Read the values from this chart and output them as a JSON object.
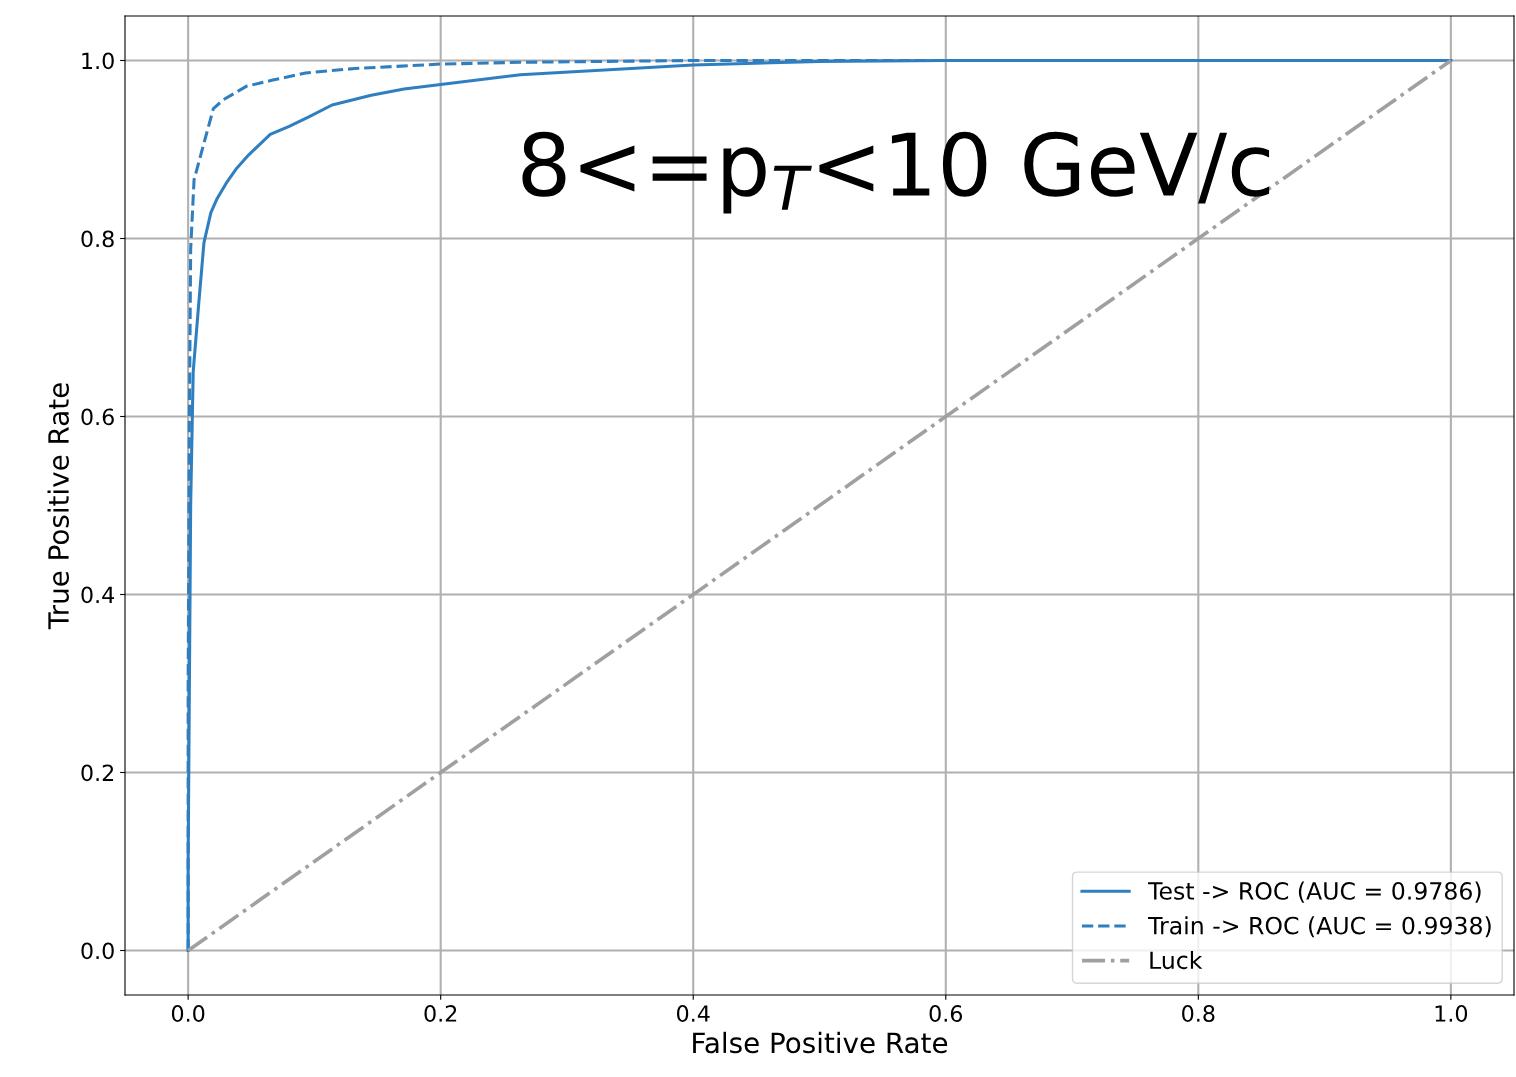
{
  "chart_data": {
    "type": "line",
    "xlabel": "False Positive Rate",
    "ylabel": "True Positive Rate",
    "annotations": [
      "8<=p$_{T}$<10 GeV/c"
    ],
    "xlim": [
      -0.05,
      1.05
    ],
    "ylim": [
      -0.05,
      1.05
    ],
    "xticks": [
      {
        "value": 0,
        "label": "0.0"
      },
      {
        "value": 0.2,
        "label": "0.2"
      },
      {
        "value": 0.4,
        "label": "0.4"
      },
      {
        "value": 0.6,
        "label": "0.6"
      },
      {
        "value": 0.8,
        "label": "0.8"
      },
      {
        "value": 1,
        "label": "1.0"
      }
    ],
    "yticks": [
      {
        "value": 0,
        "label": "0.0"
      },
      {
        "value": 0.2,
        "label": "0.2"
      },
      {
        "value": 0.4,
        "label": "0.4"
      },
      {
        "value": 0.6,
        "label": "0.6"
      },
      {
        "value": 0.8,
        "label": "0.8"
      },
      {
        "value": 1,
        "label": "1.0"
      }
    ],
    "grid": true,
    "legend": "bottom right",
    "series": [
      {
        "name": "Test -> ROC (AUC = 0.9786)",
        "color": "#2f7fc0",
        "line_style": "solid",
        "x": [
          0,
          0,
          0.001,
          0.002,
          0.004,
          0.008,
          0.0125,
          0.018,
          0.023,
          0.031,
          0.0385,
          0.048,
          0.065,
          0.08,
          0.096,
          0.114,
          0.145,
          0.171,
          0.2,
          0.263,
          0.4,
          0.5,
          0.6,
          1
        ],
        "values": [
          0,
          0.1,
          0.3,
          0.5,
          0.65,
          0.72,
          0.795,
          0.829,
          0.845,
          0.864,
          0.879,
          0.894,
          0.917,
          0.926,
          0.937,
          0.95,
          0.961,
          0.968,
          0.973,
          0.984,
          0.995,
          0.999,
          1,
          1
        ]
      },
      {
        "name": "Train -> ROC (AUC = 0.9938)",
        "color": "#2f7fc0",
        "line_style": "dashed",
        "x": [
          0,
          0,
          0.001,
          0.002,
          0.0047,
          0.0125,
          0.02,
          0.028,
          0.046,
          0.067,
          0.093,
          0.132,
          0.2,
          0.263,
          0.4,
          1
        ],
        "values": [
          0,
          0.3,
          0.6,
          0.788,
          0.866,
          0.907,
          0.946,
          0.956,
          0.971,
          0.978,
          0.986,
          0.991,
          0.996,
          0.998,
          1,
          1
        ]
      },
      {
        "name": "Luck",
        "color": "#a0a0a0",
        "line_style": "dashdot",
        "x": [
          0,
          1
        ],
        "values": [
          0,
          1
        ]
      }
    ]
  }
}
